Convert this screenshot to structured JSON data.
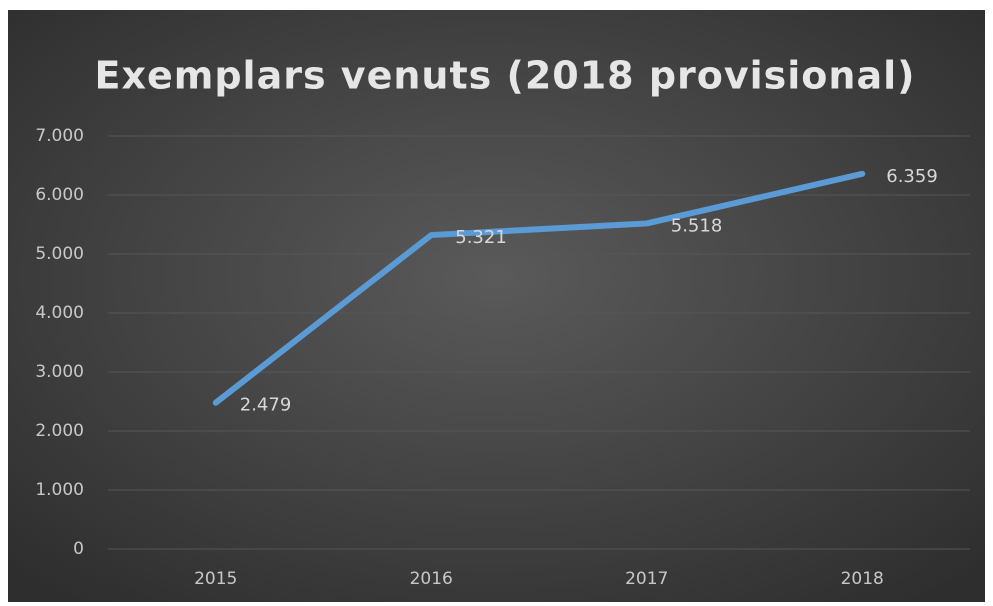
{
  "chart_data": {
    "type": "line",
    "title": "Exemplars venuts (2018 provisional)",
    "categories": [
      "2015",
      "2016",
      "2017",
      "2018"
    ],
    "values": [
      2479,
      5321,
      5518,
      6359
    ],
    "value_labels": [
      "2.479",
      "5.321",
      "5.518",
      "6.359"
    ],
    "color": "#5b9bd5",
    "ylim": [
      0,
      7000
    ],
    "yticks": [
      0,
      {
        "value": 1000,
        "label": "1.000"
      },
      {
        "value": 2000,
        "label": "2.000"
      },
      {
        "value": 3000,
        "label": "3.000"
      },
      {
        "value": 4000,
        "label": "4.000"
      },
      {
        "value": 5000,
        "label": "5.000"
      },
      {
        "value": 6000,
        "label": "6.000"
      },
      {
        "value": 7000,
        "label": "7.000"
      }
    ],
    "grid": true
  }
}
